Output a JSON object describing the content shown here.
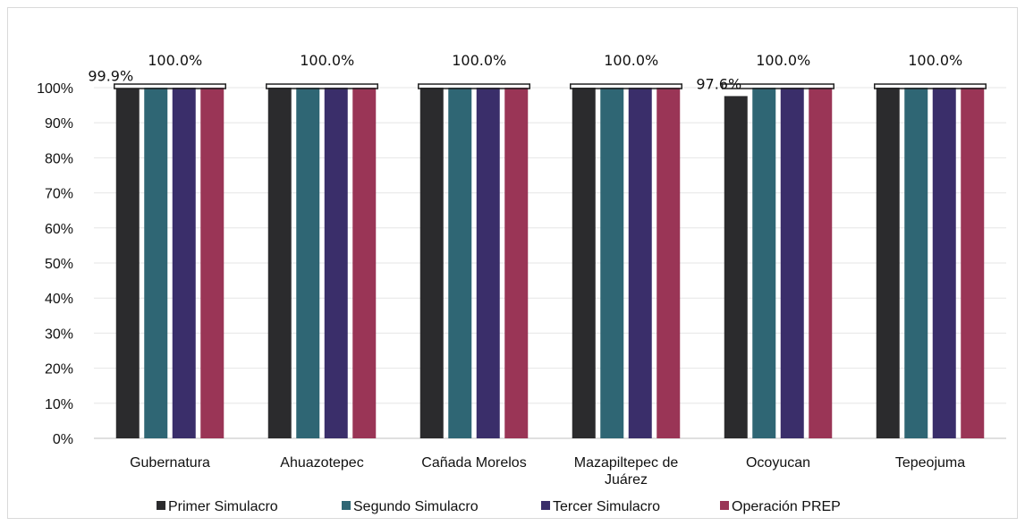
{
  "chart_data": {
    "type": "bar",
    "categories": [
      "Gubernatura",
      "Ahuazotepec",
      "Cañada Morelos",
      "Mazapiltepec de Juárez",
      "Ocoyucan",
      "Tepeojuma"
    ],
    "category_lines": [
      [
        "Gubernatura"
      ],
      [
        "Ahuazotepec"
      ],
      [
        "Cañada Morelos"
      ],
      [
        "Mazapiltepec de",
        "Juárez"
      ],
      [
        "Ocoyucan"
      ],
      [
        "Tepeojuma"
      ]
    ],
    "series": [
      {
        "name": "Primer Simulacro",
        "color": "#2b2b2d",
        "values": [
          99.9,
          100.0,
          100.0,
          100.0,
          97.6,
          100.0
        ]
      },
      {
        "name": "Segundo Simulacro",
        "color": "#2f6674",
        "values": [
          100.0,
          100.0,
          100.0,
          100.0,
          100.0,
          100.0
        ]
      },
      {
        "name": "Tercer Simulacro",
        "color": "#3a2e6a",
        "values": [
          100.0,
          100.0,
          100.0,
          100.0,
          100.0,
          100.0
        ]
      },
      {
        "name": "Operación PREP",
        "color": "#9a3556",
        "values": [
          100.0,
          100.0,
          100.0,
          100.0,
          100.0,
          100.0
        ]
      }
    ],
    "ylim": [
      0,
      100
    ],
    "yticks": [
      "0%",
      "10%",
      "20%",
      "30%",
      "40%",
      "50%",
      "60%",
      "70%",
      "80%",
      "90%",
      "100%"
    ],
    "data_labels": [
      {
        "category": 0,
        "series": 0,
        "text": "99.9%"
      },
      {
        "category": 0,
        "series": 2,
        "text": "100.0%"
      },
      {
        "category": 1,
        "series": 2,
        "text": "100.0%"
      },
      {
        "category": 2,
        "series": 2,
        "text": "100.0%"
      },
      {
        "category": 3,
        "series": 2,
        "text": "100.0%"
      },
      {
        "category": 4,
        "series": 0,
        "text": "97.6%"
      },
      {
        "category": 4,
        "series": 2,
        "text": "100.0%"
      },
      {
        "category": 5,
        "series": 2,
        "text": "100.0%"
      }
    ],
    "grid": true,
    "legend_position": "bottom",
    "title": "",
    "xlabel": "",
    "ylabel": ""
  }
}
